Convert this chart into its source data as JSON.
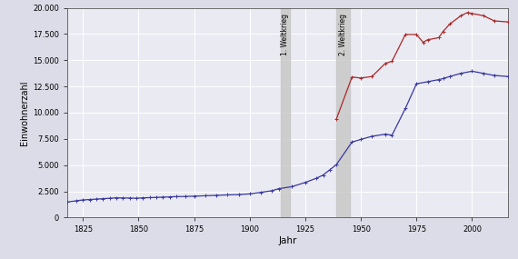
{
  "xlabel": "Jahr",
  "ylabel": "Einwohnerzahl",
  "ylim": [
    0,
    20000
  ],
  "xlim": [
    1818,
    2016
  ],
  "yticks": [
    0,
    2500,
    5000,
    7500,
    10000,
    12500,
    15000,
    17500,
    20000
  ],
  "xticks": [
    1825,
    1850,
    1875,
    1900,
    1925,
    1950,
    1975,
    2000
  ],
  "ww1_span": [
    1914,
    1918
  ],
  "ww2_span": [
    1939,
    1945
  ],
  "ww1_label": "1. Weltkrieg",
  "ww2_label": "2. Weltkrieg",
  "bg_color": "#dcdce8",
  "plot_bg_color": "#eaeaf2",
  "grid_color": "#ffffff",
  "line1_color": "#3838a0",
  "line2_color": "#aa2828",
  "blue_data": [
    [
      1818,
      1480
    ],
    [
      1822,
      1600
    ],
    [
      1825,
      1680
    ],
    [
      1828,
      1720
    ],
    [
      1831,
      1760
    ],
    [
      1834,
      1800
    ],
    [
      1837,
      1840
    ],
    [
      1840,
      1880
    ],
    [
      1843,
      1870
    ],
    [
      1846,
      1860
    ],
    [
      1849,
      1840
    ],
    [
      1852,
      1880
    ],
    [
      1855,
      1900
    ],
    [
      1858,
      1920
    ],
    [
      1861,
      1950
    ],
    [
      1864,
      1970
    ],
    [
      1867,
      2000
    ],
    [
      1871,
      2010
    ],
    [
      1875,
      2040
    ],
    [
      1880,
      2080
    ],
    [
      1885,
      2120
    ],
    [
      1890,
      2160
    ],
    [
      1895,
      2190
    ],
    [
      1900,
      2260
    ],
    [
      1905,
      2400
    ],
    [
      1910,
      2560
    ],
    [
      1913,
      2750
    ],
    [
      1919,
      2950
    ],
    [
      1925,
      3350
    ],
    [
      1930,
      3750
    ],
    [
      1933,
      4050
    ],
    [
      1936,
      4550
    ],
    [
      1939,
      5050
    ],
    [
      1946,
      7200
    ],
    [
      1950,
      7450
    ],
    [
      1955,
      7750
    ],
    [
      1961,
      7950
    ],
    [
      1964,
      7850
    ],
    [
      1970,
      10400
    ],
    [
      1975,
      12750
    ],
    [
      1980,
      12950
    ],
    [
      1985,
      13150
    ],
    [
      1987,
      13250
    ],
    [
      1990,
      13450
    ],
    [
      1995,
      13750
    ],
    [
      2000,
      13950
    ],
    [
      2005,
      13750
    ],
    [
      2010,
      13550
    ],
    [
      2016,
      13450
    ]
  ],
  "red_data": [
    [
      1939,
      9400
    ],
    [
      1946,
      13400
    ],
    [
      1950,
      13300
    ],
    [
      1955,
      13450
    ],
    [
      1961,
      14700
    ],
    [
      1964,
      14900
    ],
    [
      1970,
      17450
    ],
    [
      1975,
      17450
    ],
    [
      1978,
      16700
    ],
    [
      1980,
      16950
    ],
    [
      1985,
      17150
    ],
    [
      1987,
      17750
    ],
    [
      1990,
      18450
    ],
    [
      1995,
      19250
    ],
    [
      1998,
      19550
    ],
    [
      2000,
      19450
    ],
    [
      2005,
      19250
    ],
    [
      2010,
      18750
    ],
    [
      2016,
      18650
    ]
  ]
}
